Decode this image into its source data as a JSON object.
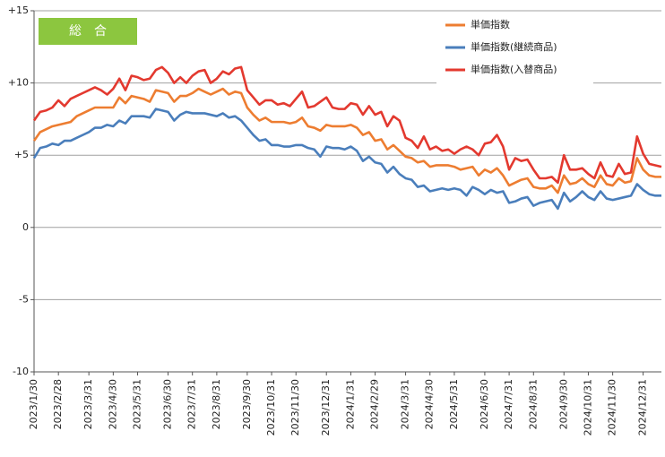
{
  "chart_data": {
    "type": "line",
    "annotation": "総　合",
    "categories": [
      "2023/1/30",
      null,
      null,
      null,
      "2023/2/28",
      null,
      null,
      null,
      null,
      "2023/3/31",
      null,
      null,
      null,
      "2023/4/30",
      null,
      null,
      null,
      "2023/5/31",
      null,
      null,
      null,
      null,
      "2023/6/30",
      null,
      null,
      null,
      "2023/7/31",
      null,
      null,
      null,
      "2023/8/31",
      null,
      null,
      null,
      null,
      "2023/9/30",
      null,
      null,
      null,
      "2023/10/31",
      null,
      null,
      null,
      "2023/11/30",
      null,
      null,
      null,
      null,
      "2023/12/31",
      null,
      null,
      null,
      "2024/1/31",
      null,
      null,
      null,
      "2024/2/29",
      null,
      null,
      null,
      null,
      "2024/3/31",
      null,
      null,
      null,
      "2024/4/30",
      null,
      null,
      null,
      "2024/5/31",
      null,
      null,
      null,
      null,
      "2024/6/30",
      null,
      null,
      null,
      "2024/7/31",
      null,
      null,
      null,
      "2024/8/31",
      null,
      null,
      null,
      null,
      "2024/9/30",
      null,
      null,
      null,
      "2024/10/31",
      null,
      null,
      null,
      "2024/11/30",
      null,
      null,
      null,
      null,
      "2024/12/31",
      null,
      null,
      null
    ],
    "series": [
      {
        "name": "単価指数",
        "color": "#ed7d31",
        "values": [
          6.0,
          6.6,
          6.8,
          7.0,
          7.1,
          7.2,
          7.3,
          7.7,
          7.9,
          8.1,
          8.3,
          8.3,
          8.3,
          8.3,
          9.0,
          8.6,
          9.1,
          9.0,
          8.9,
          8.7,
          9.5,
          9.4,
          9.3,
          8.7,
          9.1,
          9.1,
          9.3,
          9.6,
          9.4,
          9.2,
          9.4,
          9.6,
          9.2,
          9.4,
          9.3,
          8.3,
          7.8,
          7.4,
          7.6,
          7.3,
          7.3,
          7.3,
          7.2,
          7.3,
          7.6,
          7.0,
          6.9,
          6.7,
          7.1,
          7.0,
          7.0,
          7.0,
          7.1,
          6.9,
          6.4,
          6.6,
          6.0,
          6.1,
          5.4,
          5.7,
          5.3,
          4.9,
          4.8,
          4.5,
          4.6,
          4.2,
          4.3,
          4.3,
          4.3,
          4.2,
          4.0,
          4.1,
          4.2,
          3.6,
          4.0,
          3.8,
          4.1,
          3.6,
          2.9,
          3.1,
          3.3,
          3.4,
          2.8,
          2.7,
          2.7,
          2.9,
          2.4,
          3.6,
          3.0,
          3.1,
          3.4,
          3.0,
          2.8,
          3.6,
          3.0,
          2.9,
          3.4,
          3.1,
          3.2,
          4.8,
          4.0,
          3.6,
          3.5,
          3.5
        ]
      },
      {
        "name": "単価指数(継続商品)",
        "color": "#4a7ebb",
        "values": [
          4.8,
          5.5,
          5.6,
          5.8,
          5.7,
          6.0,
          6.0,
          6.2,
          6.4,
          6.6,
          6.9,
          6.9,
          7.1,
          7.0,
          7.4,
          7.2,
          7.7,
          7.7,
          7.7,
          7.6,
          8.2,
          8.1,
          8.0,
          7.4,
          7.8,
          8.0,
          7.9,
          7.9,
          7.9,
          7.8,
          7.7,
          7.9,
          7.6,
          7.7,
          7.4,
          6.9,
          6.4,
          6.0,
          6.1,
          5.7,
          5.7,
          5.6,
          5.6,
          5.7,
          5.7,
          5.5,
          5.4,
          4.9,
          5.6,
          5.5,
          5.5,
          5.4,
          5.6,
          5.3,
          4.6,
          4.9,
          4.5,
          4.4,
          3.8,
          4.2,
          3.7,
          3.4,
          3.3,
          2.8,
          2.9,
          2.5,
          2.6,
          2.7,
          2.6,
          2.7,
          2.6,
          2.2,
          2.8,
          2.6,
          2.3,
          2.6,
          2.4,
          2.5,
          1.7,
          1.8,
          2.0,
          2.1,
          1.5,
          1.7,
          1.8,
          1.9,
          1.3,
          2.4,
          1.8,
          2.1,
          2.5,
          2.1,
          1.9,
          2.5,
          2.0,
          1.9,
          2.0,
          2.1,
          2.2,
          3.0,
          2.6,
          2.3,
          2.2,
          2.2
        ]
      },
      {
        "name": "単価指数(入替商品)",
        "color": "#e3392f",
        "values": [
          7.4,
          8.0,
          8.1,
          8.3,
          8.8,
          8.4,
          8.9,
          9.1,
          9.3,
          9.5,
          9.7,
          9.5,
          9.2,
          9.6,
          10.3,
          9.5,
          10.5,
          10.4,
          10.2,
          10.3,
          10.9,
          11.1,
          10.7,
          10.0,
          10.4,
          10.0,
          10.5,
          10.8,
          10.9,
          10.0,
          10.3,
          10.8,
          10.6,
          11.0,
          11.1,
          9.5,
          9.0,
          8.5,
          8.8,
          8.8,
          8.5,
          8.6,
          8.4,
          8.9,
          9.4,
          8.3,
          8.4,
          8.7,
          9.0,
          8.3,
          8.2,
          8.2,
          8.6,
          8.5,
          7.8,
          8.4,
          7.8,
          8.0,
          7.0,
          7.7,
          7.4,
          6.2,
          6.0,
          5.5,
          6.3,
          5.4,
          5.6,
          5.3,
          5.4,
          5.1,
          5.4,
          5.6,
          5.4,
          5.0,
          5.8,
          5.9,
          6.4,
          5.6,
          4.0,
          4.8,
          4.6,
          4.7,
          4.0,
          3.4,
          3.4,
          3.5,
          3.1,
          5.0,
          4.0,
          4.0,
          4.1,
          3.7,
          3.4,
          4.5,
          3.6,
          3.5,
          4.4,
          3.7,
          3.8,
          6.3,
          5.1,
          4.4,
          4.3,
          4.2
        ]
      }
    ],
    "ylim": [
      -10,
      15
    ],
    "yticks": [
      -10,
      -5,
      0,
      {
        "value": 5,
        "label": "+5"
      },
      {
        "value": 10,
        "label": "+10"
      },
      {
        "value": 15,
        "label": "+15"
      }
    ],
    "grid": true,
    "legend": "top-right"
  }
}
